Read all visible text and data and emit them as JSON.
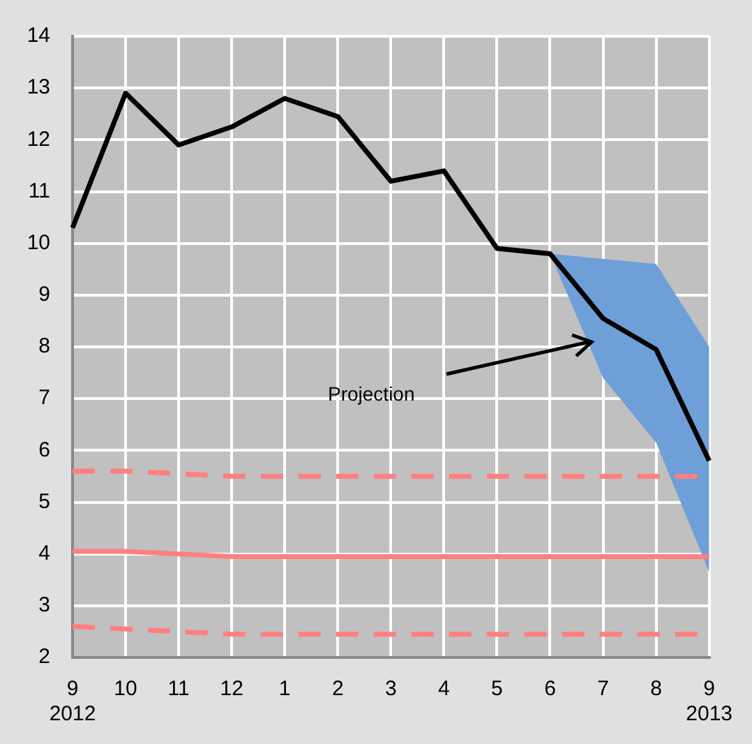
{
  "chart_data": {
    "type": "line",
    "categories": [
      "9\n2012",
      "10",
      "11",
      "12",
      "1",
      "2",
      "3",
      "4",
      "5",
      "6",
      "7",
      "8",
      "9\n2013"
    ],
    "series": [
      {
        "color": "#ff7f7f",
        "line_style": "dashed",
        "values": [
          5.6,
          5.6,
          5.55,
          5.5,
          5.5,
          5.5,
          5.5,
          5.5,
          5.5,
          5.5,
          5.5,
          5.5,
          5.5
        ]
      },
      {
        "color": "#ff7f7f",
        "line_style": "solid",
        "values": [
          4.05,
          4.05,
          4.0,
          3.95,
          3.95,
          3.95,
          3.95,
          3.95,
          3.95,
          3.95,
          3.95,
          3.95,
          3.95
        ]
      },
      {
        "color": "#ff7f7f",
        "line_style": "dashed",
        "values": [
          2.6,
          2.55,
          2.5,
          2.45,
          2.45,
          2.45,
          2.45,
          2.45,
          2.45,
          2.45,
          2.45,
          2.45,
          2.45
        ]
      },
      {
        "color": "#000000",
        "line_style": "solid",
        "values": [
          10.3,
          12.9,
          11.9,
          12.25,
          12.8,
          12.45,
          11.2,
          11.4,
          9.9,
          9.8,
          8.55,
          7.95,
          5.8
        ],
        "lower": [
          null,
          null,
          null,
          null,
          null,
          null,
          null,
          null,
          null,
          9.8,
          7.4,
          6.15,
          3.65
        ],
        "upper": [
          null,
          null,
          null,
          null,
          null,
          null,
          null,
          null,
          null,
          9.8,
          9.7,
          9.6,
          8.0
        ]
      }
    ],
    "ylim": [
      2,
      14
    ],
    "yticks": [
      2,
      3,
      4,
      5,
      6,
      7,
      8,
      9,
      10,
      11,
      12,
      13,
      14
    ],
    "grid": true,
    "legend": false,
    "marker": "none",
    "annotations": [
      "Projection"
    ]
  }
}
